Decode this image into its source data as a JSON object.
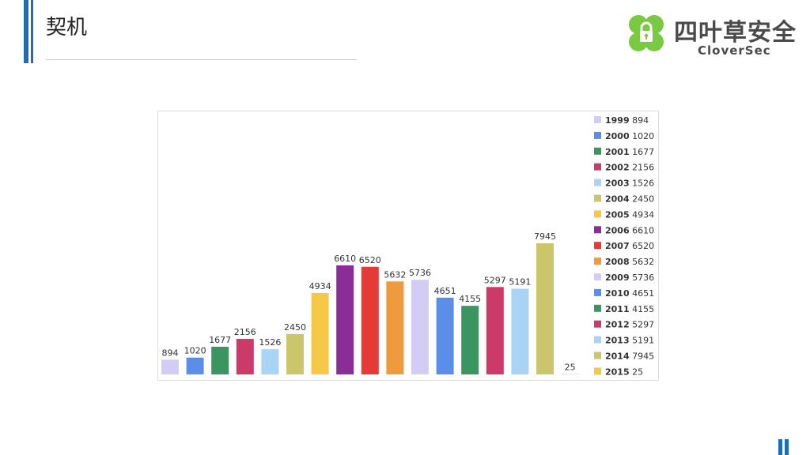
{
  "page": {
    "title": "契机",
    "brand_cn": "四叶草安全",
    "brand_en": "CloverSec",
    "brand_color": "#7ac943",
    "accent_color": "#1f6db5"
  },
  "chart_data": {
    "type": "bar",
    "categories": [
      "1999",
      "2000",
      "2001",
      "2002",
      "2003",
      "2004",
      "2005",
      "2006",
      "2007",
      "2008",
      "2009",
      "2010",
      "2011",
      "2012",
      "2013",
      "2014",
      "2015"
    ],
    "values": [
      894,
      1020,
      1677,
      2156,
      1526,
      2450,
      4934,
      6610,
      6520,
      5632,
      5736,
      4651,
      4155,
      5297,
      5191,
      7945,
      25
    ],
    "colors": [
      "#d3cdf5",
      "#5b8ee8",
      "#3a9560",
      "#cc3a6a",
      "#a9d4f5",
      "#cbc66c",
      "#f5c847",
      "#8a2d96",
      "#e53a36",
      "#f09a3e",
      "#d3cdf5",
      "#5b8ee8",
      "#3a9560",
      "#cc3a6a",
      "#a9d4f5",
      "#cbc66c",
      "#f5c847"
    ],
    "ylim": [
      0,
      8200
    ],
    "legend_position": "right",
    "grid": false,
    "title": "",
    "xlabel": "",
    "ylabel": ""
  }
}
